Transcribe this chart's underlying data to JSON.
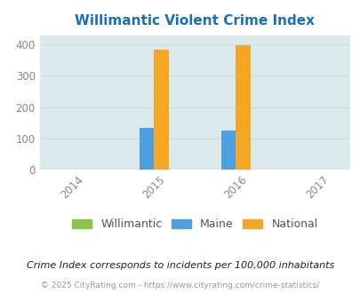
{
  "title": "Willimantic Violent Crime Index",
  "years": [
    2014,
    2015,
    2016,
    2017
  ],
  "bar_width": 0.18,
  "willimantic": {
    "2015": 0,
    "2016": 0
  },
  "maine": {
    "2015": 133,
    "2016": 126
  },
  "national": {
    "2015": 383,
    "2016": 398
  },
  "willimantic_color": "#8bc34a",
  "maine_color": "#4c9fe0",
  "national_color": "#f5a623",
  "plot_bg_color": "#daeaec",
  "ylim": [
    0,
    430
  ],
  "yticks": [
    0,
    100,
    200,
    300,
    400
  ],
  "legend_labels": [
    "Willimantic",
    "Maine",
    "National"
  ],
  "footnote": "Crime Index corresponds to incidents per 100,000 inhabitants",
  "copyright": "© 2025 CityRating.com - https://www.cityrating.com/crime-statistics/",
  "title_color": "#1a6fba",
  "footnote_color": "#222222",
  "copyright_color": "#999999",
  "grid_color": "#c8dde0",
  "tick_label_color": "#888888",
  "legend_text_color": "#555555"
}
